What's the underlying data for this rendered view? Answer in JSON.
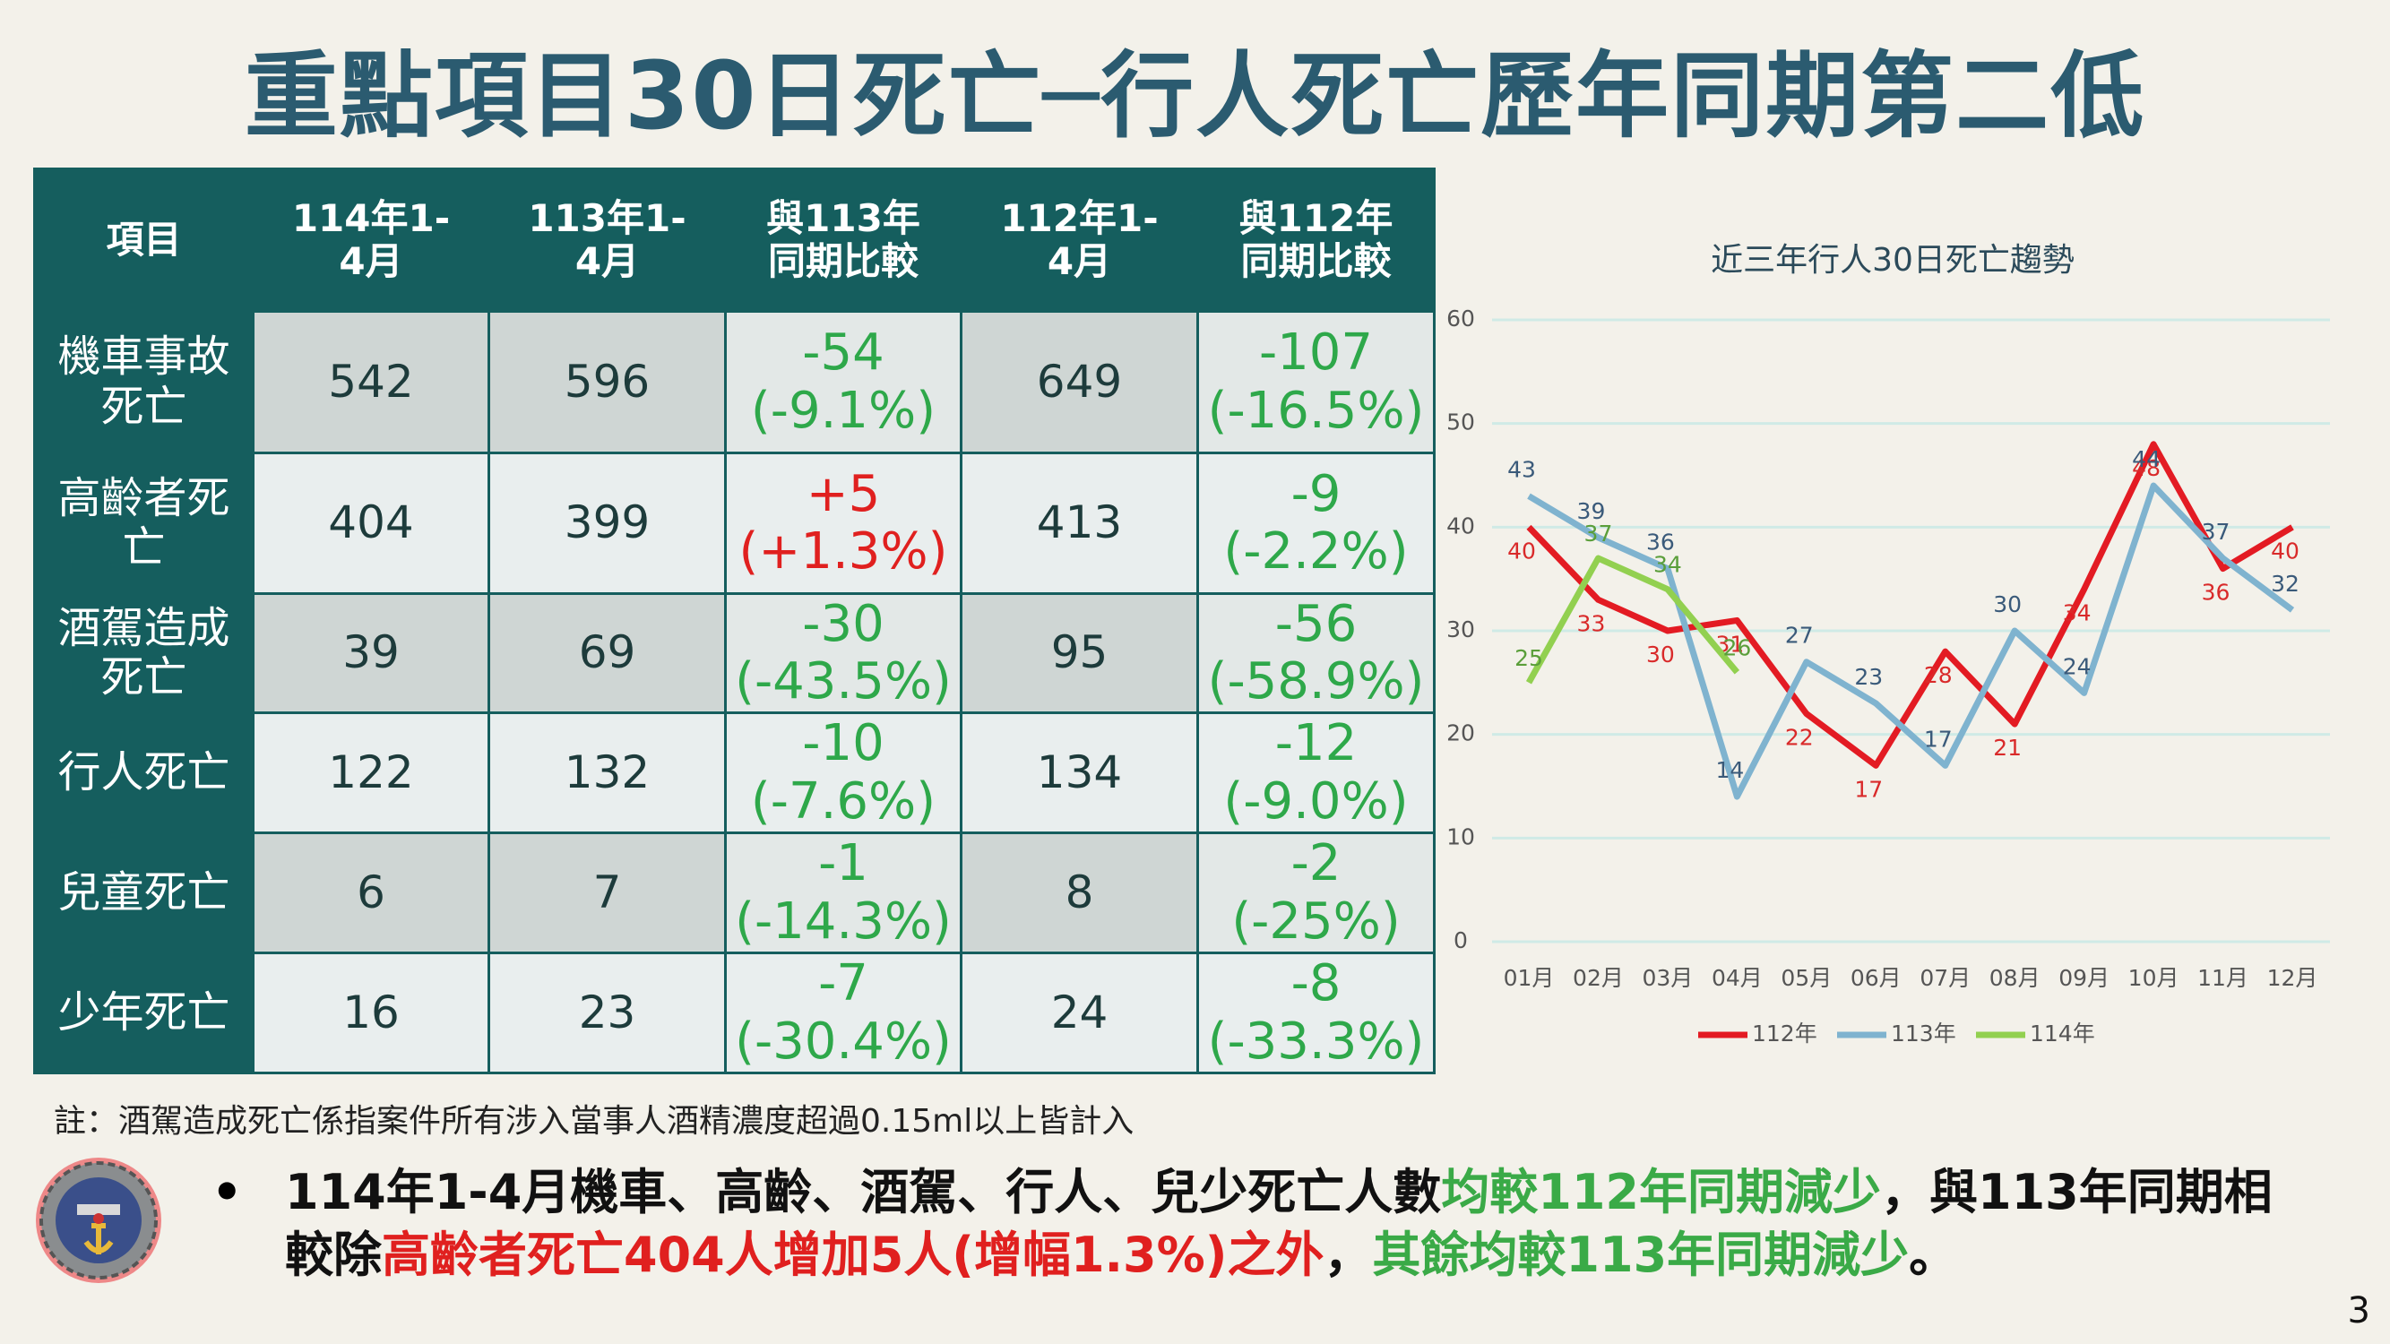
{
  "title": "重點項目30日死亡─行人死亡歷年同期第二低",
  "table": {
    "header": [
      "項目",
      "114年1-4月",
      "113年1-4月",
      "與113年同期比較",
      "112年1-4月",
      "與112年同期比較"
    ],
    "rows": [
      [
        "機車事故死亡",
        542,
        596,
        [
          "-54",
          "(-9.1%)"
        ],
        649,
        [
          "-107",
          "(-16.5%)"
        ]
      ],
      [
        "高齡者死亡",
        404,
        399,
        [
          "+5",
          "(+1.3%)"
        ],
        413,
        [
          "-9",
          "(-2.2%)"
        ]
      ],
      [
        "酒駕造成死亡",
        39,
        69,
        [
          "-30",
          "(-43.5%)"
        ],
        95,
        [
          "-56",
          "(-58.9%)"
        ]
      ],
      [
        "行人死亡",
        122,
        132,
        [
          "-10",
          "(-7.6%)"
        ],
        134,
        [
          "-12",
          "(-9.0%)"
        ]
      ],
      [
        "兒童死亡",
        6,
        7,
        [
          "-1",
          "(-14.3%)"
        ],
        8,
        [
          "-2",
          "(-25%)"
        ]
      ],
      [
        "少年死亡",
        16,
        23,
        [
          "-7",
          "(-30.4%)"
        ],
        24,
        [
          "-8",
          "(-33.3%)"
        ]
      ]
    ]
  },
  "note": "註：酒駕造成死亡係指案件所有涉入當事人酒精濃度超過0.15ml以上皆計入",
  "bullet": {
    "lines": [
      [
        {
          "text": "114年1-4月機車、高齡、酒駕、行人、兒少死亡人數",
          "color": "#111111"
        },
        {
          "text": "均較112年同期減少",
          "color": "#3aaa47"
        },
        {
          "text": "，與113年同期相",
          "color": "#111111"
        }
      ],
      [
        {
          "text": "較除",
          "color": "#111111"
        },
        {
          "text": "高齡者死亡404人增加5人(增幅1.3%)之外",
          "color": "#e0201f"
        },
        {
          "text": "，",
          "color": "#111111"
        },
        {
          "text": "其餘均較113年同期減少",
          "color": "#3aaa47"
        },
        {
          "text": "。",
          "color": "#111111"
        }
      ]
    ]
  },
  "page_number": 3,
  "chart_data": {
    "type": "line",
    "title": "近三年行人30日死亡趨勢",
    "categories": [
      "01月",
      "02月",
      "03月",
      "04月",
      "05月",
      "06月",
      "07月",
      "08月",
      "09月",
      "10月",
      "11月",
      "12月"
    ],
    "series": [
      {
        "name": "112年",
        "color": "#e31b23",
        "values": [
          40,
          33,
          30,
          31,
          22,
          17,
          28,
          21,
          34,
          48,
          36,
          40
        ]
      },
      {
        "name": "113年",
        "color": "#7fb3cf",
        "values": [
          43,
          39,
          36,
          14,
          27,
          23,
          17,
          30,
          24,
          44,
          37,
          32
        ]
      },
      {
        "name": "114年",
        "color": "#92d050",
        "values": [
          25,
          37,
          34,
          26,
          null,
          null,
          null,
          null,
          null,
          null,
          null,
          null
        ]
      }
    ],
    "ylim": [
      0,
      60
    ],
    "yticks": [
      0,
      10,
      20,
      30,
      40,
      50,
      60
    ],
    "grid": true,
    "legend": "bottom"
  }
}
